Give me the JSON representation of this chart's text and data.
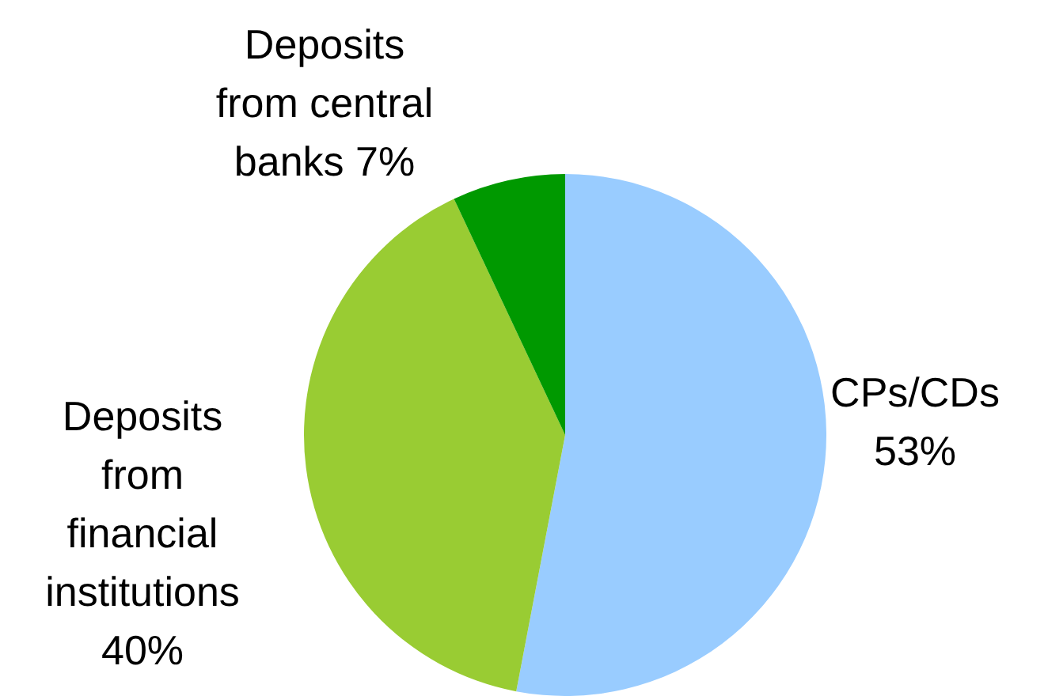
{
  "chart_data": {
    "type": "pie",
    "categories": [
      "CPs/CDs",
      "Deposits from financial institutions",
      "Deposits from central banks"
    ],
    "values": [
      53,
      40,
      7
    ],
    "value_labels": [
      "53%",
      "40%",
      "7%"
    ],
    "colors": [
      "#99ccff",
      "#99cc33",
      "#009900"
    ]
  }
}
